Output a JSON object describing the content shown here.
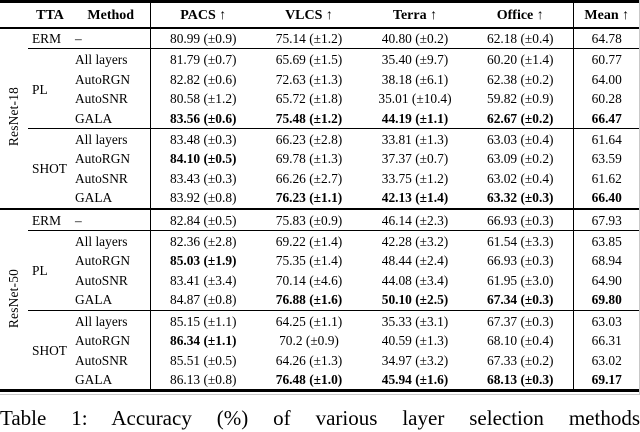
{
  "page": {
    "caption": "Table 1: Accuracy (%) of various layer selection methods"
  },
  "table": {
    "headers": [
      "TTA",
      "Method",
      "PACS ↑",
      "VLCS ↑",
      "Terra ↑",
      "Office ↑",
      "Mean ↑"
    ],
    "groups": [
      {
        "backbone": "ResNet-18",
        "blocks": [
          {
            "tta": "ERM",
            "rows": [
              {
                "method": "–",
                "values": [
                  "80.99 (±0.9)",
                  "75.14 (±1.2)",
                  "40.80 (±0.2)",
                  "62.18 (±0.4)",
                  "64.78"
                ],
                "bold": [
                  false,
                  false,
                  false,
                  false,
                  false
                ]
              }
            ]
          },
          {
            "tta": "PL",
            "rows": [
              {
                "method": "All layers",
                "values": [
                  "81.79 (±0.7)",
                  "65.69 (±1.5)",
                  "35.40 (±9.7)",
                  "60.20 (±1.4)",
                  "60.77"
                ],
                "bold": [
                  false,
                  false,
                  false,
                  false,
                  false
                ]
              },
              {
                "method": "AutoRGN",
                "values": [
                  "82.82 (±0.6)",
                  "72.63 (±1.3)",
                  "38.18 (±6.1)",
                  "62.38 (±0.2)",
                  "64.00"
                ],
                "bold": [
                  false,
                  false,
                  false,
                  false,
                  false
                ]
              },
              {
                "method": "AutoSNR",
                "values": [
                  "80.58 (±1.2)",
                  "65.72 (±1.8)",
                  "35.01 (±10.4)",
                  "59.82 (±0.9)",
                  "60.28"
                ],
                "bold": [
                  false,
                  false,
                  false,
                  false,
                  false
                ]
              },
              {
                "method": "GALA",
                "values": [
                  "83.56 (±0.6)",
                  "75.48 (±1.2)",
                  "44.19 (±1.1)",
                  "62.67 (±0.2)",
                  "66.47"
                ],
                "bold": [
                  true,
                  true,
                  true,
                  true,
                  true
                ]
              }
            ]
          },
          {
            "tta": "SHOT",
            "rows": [
              {
                "method": "All layers",
                "values": [
                  "83.48 (±0.3)",
                  "66.23 (±2.8)",
                  "33.81 (±1.3)",
                  "63.03 (±0.4)",
                  "61.64"
                ],
                "bold": [
                  false,
                  false,
                  false,
                  false,
                  false
                ]
              },
              {
                "method": "AutoRGN",
                "values": [
                  "84.10 (±0.5)",
                  "69.78 (±1.3)",
                  "37.37 (±0.7)",
                  "63.09 (±0.2)",
                  "63.59"
                ],
                "bold": [
                  true,
                  false,
                  false,
                  false,
                  false
                ]
              },
              {
                "method": "AutoSNR",
                "values": [
                  "83.43 (±0.3)",
                  "66.26 (±2.7)",
                  "33.75 (±1.2)",
                  "63.02 (±0.4)",
                  "61.62"
                ],
                "bold": [
                  false,
                  false,
                  false,
                  false,
                  false
                ]
              },
              {
                "method": "GALA",
                "values": [
                  "83.92 (±0.8)",
                  "76.23 (±1.1)",
                  "42.13 (±1.4)",
                  "63.32 (±0.3)",
                  "66.40"
                ],
                "bold": [
                  false,
                  true,
                  true,
                  true,
                  true
                ]
              }
            ]
          }
        ]
      },
      {
        "backbone": "ResNet-50",
        "blocks": [
          {
            "tta": "ERM",
            "rows": [
              {
                "method": "–",
                "values": [
                  "82.84 (±0.5)",
                  "75.83 (±0.9)",
                  "46.14 (±2.3)",
                  "66.93 (±0.3)",
                  "67.93"
                ],
                "bold": [
                  false,
                  false,
                  false,
                  false,
                  false
                ]
              }
            ]
          },
          {
            "tta": "PL",
            "rows": [
              {
                "method": "All layers",
                "values": [
                  "82.36 (±2.8)",
                  "69.22 (±1.4)",
                  "42.28 (±3.2)",
                  "61.54 (±3.3)",
                  "63.85"
                ],
                "bold": [
                  false,
                  false,
                  false,
                  false,
                  false
                ]
              },
              {
                "method": "AutoRGN",
                "values": [
                  "85.03 (±1.9)",
                  "75.35 (±1.4)",
                  "48.44 (±2.4)",
                  "66.93 (±0.3)",
                  "68.94"
                ],
                "bold": [
                  true,
                  false,
                  false,
                  false,
                  false
                ]
              },
              {
                "method": "AutoSNR",
                "values": [
                  "83.41 (±3.4)",
                  "70.14 (±4.6)",
                  "44.08 (±3.4)",
                  "61.95 (±3.0)",
                  "64.90"
                ],
                "bold": [
                  false,
                  false,
                  false,
                  false,
                  false
                ]
              },
              {
                "method": "GALA",
                "values": [
                  "84.87 (±0.8)",
                  "76.88 (±1.6)",
                  "50.10 (±2.5)",
                  "67.34 (±0.3)",
                  "69.80"
                ],
                "bold": [
                  false,
                  true,
                  true,
                  true,
                  true
                ]
              }
            ]
          },
          {
            "tta": "SHOT",
            "rows": [
              {
                "method": "All layers",
                "values": [
                  "85.15 (±1.1)",
                  "64.25 (±1.1)",
                  "35.33 (±3.1)",
                  "67.37 (±0.3)",
                  "63.03"
                ],
                "bold": [
                  false,
                  false,
                  false,
                  false,
                  false
                ]
              },
              {
                "method": "AutoRGN",
                "values": [
                  "86.34 (±1.1)",
                  "70.2 (±0.9)",
                  "40.59 (±1.3)",
                  "68.10 (±0.4)",
                  "66.31"
                ],
                "bold": [
                  true,
                  false,
                  false,
                  false,
                  false
                ]
              },
              {
                "method": "AutoSNR",
                "values": [
                  "85.51 (±0.5)",
                  "64.26 (±1.3)",
                  "34.97 (±3.2)",
                  "67.33 (±0.2)",
                  "63.02"
                ],
                "bold": [
                  false,
                  false,
                  false,
                  false,
                  false
                ]
              },
              {
                "method": "GALA",
                "values": [
                  "86.13 (±0.8)",
                  "76.48 (±1.0)",
                  "45.94 (±1.6)",
                  "68.13 (±0.3)",
                  "69.17"
                ],
                "bold": [
                  false,
                  true,
                  true,
                  true,
                  true
                ]
              }
            ]
          }
        ]
      }
    ]
  }
}
